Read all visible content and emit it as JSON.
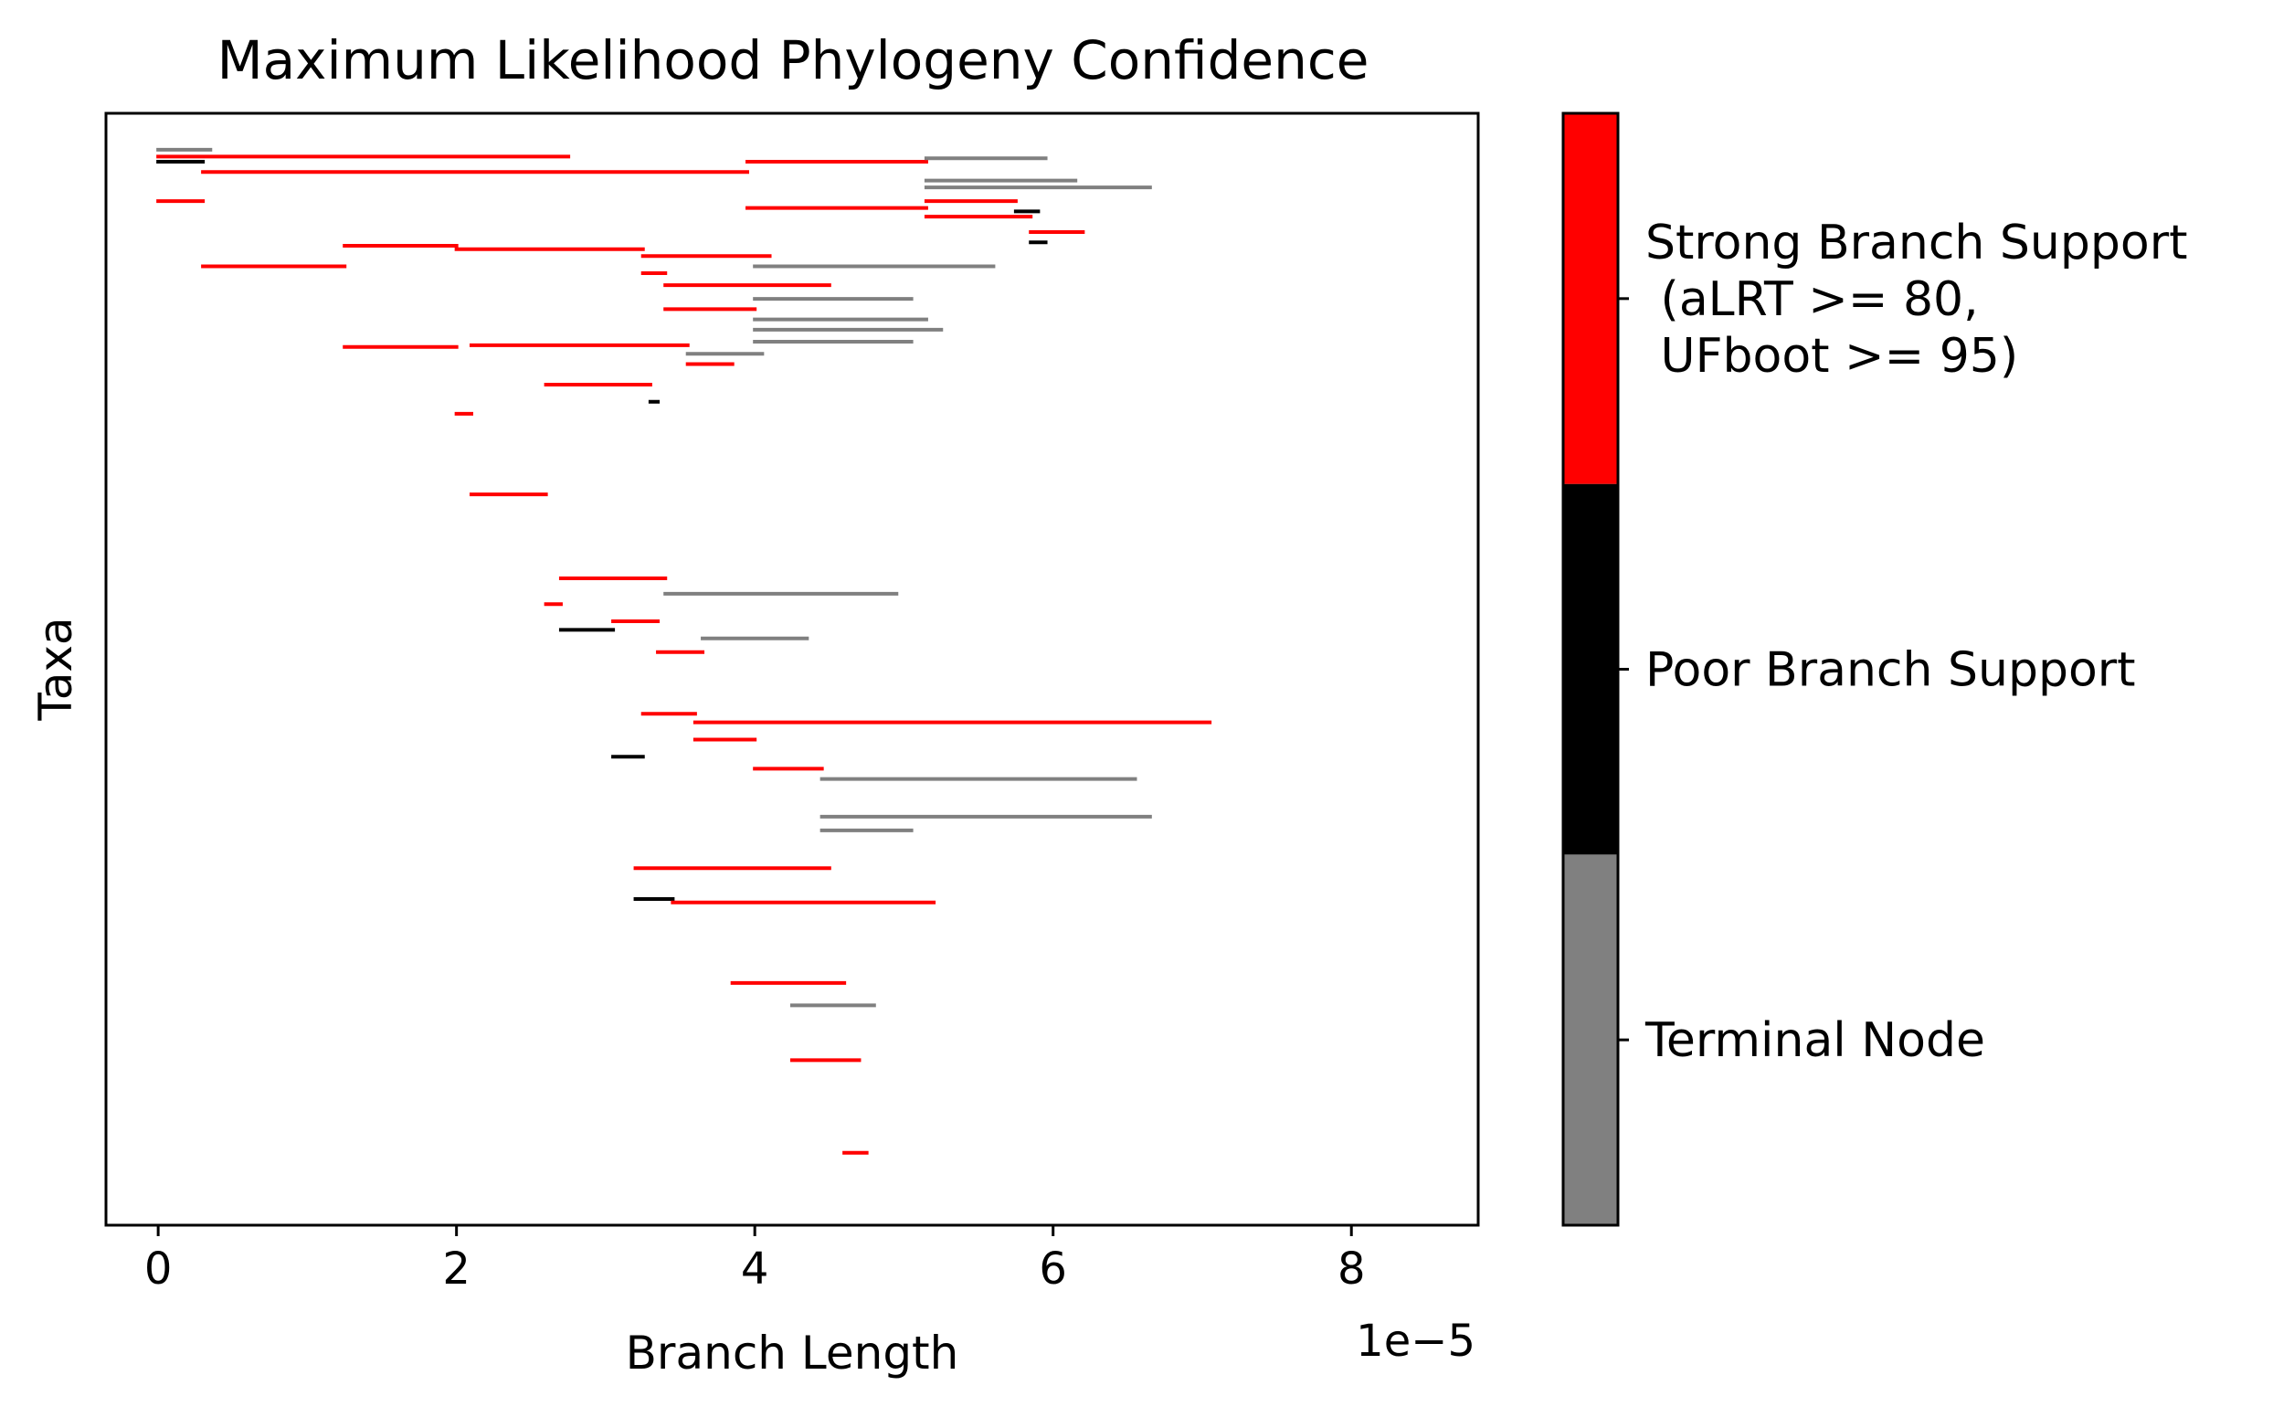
{
  "chart_data": {
    "type": "tree",
    "title": "Maximum Likelihood Phylogeny Confidence",
    "xlabel": "Branch Length",
    "ylabel": "Taxa",
    "x_offset_label": "1e−5",
    "x_scale_exponent": -5,
    "xlim": [
      -0.35,
      8.85
    ],
    "xticks": [
      0,
      2,
      4,
      6,
      8
    ],
    "xtick_labels": [
      "0",
      "2",
      "4",
      "6",
      "8"
    ],
    "y_ticks_visible": false,
    "grid": false,
    "colors": {
      "strong": "#ff0000",
      "poor": "#000000",
      "terminal": "#808080",
      "axes": "#000000",
      "background": "#ffffff"
    },
    "colorbar": {
      "order_bottom_to_top": [
        "terminal",
        "poor",
        "strong"
      ],
      "labels": {
        "terminal": "Terminal Node",
        "poor": "Poor Branch Support",
        "strong": "Strong Branch Support\n (aLRT >= 80,\n UFboot >= 95)"
      },
      "label_lines": {
        "terminal": [
          "Terminal Node"
        ],
        "poor": [
          "Poor Branch Support"
        ],
        "strong": [
          "Strong Branch Support",
          " (aLRT >= 80,",
          " UFboot >= 95)"
        ]
      }
    },
    "branches": [
      {
        "x0": 0,
        "x1": 0.3,
        "y": 31,
        "type": "strong"
      },
      {
        "x0": 0,
        "x1": 0.35,
        "y": 1,
        "type": "terminal"
      },
      {
        "x0": 0,
        "x1": 2.75,
        "y": 5,
        "type": "strong"
      },
      {
        "x0": 0,
        "x1": 0.3,
        "y": 8,
        "type": "poor"
      },
      {
        "x0": 0.3,
        "x1": 1.25,
        "y": 69,
        "type": "strong"
      },
      {
        "x0": 0.3,
        "x1": 3.95,
        "y": 14,
        "type": "strong"
      },
      {
        "x0": 3.95,
        "x1": 5.15,
        "y": 8,
        "type": "strong"
      },
      {
        "x0": 3.95,
        "x1": 5.15,
        "y": 35,
        "type": "strong"
      },
      {
        "x0": 5.15,
        "x1": 5.95,
        "y": 6,
        "type": "terminal"
      },
      {
        "x0": 5.15,
        "x1": 6.65,
        "y": 23,
        "type": "terminal"
      },
      {
        "x0": 5.15,
        "x1": 6.15,
        "y": 19,
        "type": "terminal"
      },
      {
        "x0": 5.15,
        "x1": 5.75,
        "y": 31,
        "type": "strong"
      },
      {
        "x0": 5.15,
        "x1": 5.85,
        "y": 40,
        "type": "strong"
      },
      {
        "x0": 5.75,
        "x1": 5.9,
        "y": 37,
        "type": "poor"
      },
      {
        "x0": 5.85,
        "x1": 6.2,
        "y": 49,
        "type": "strong"
      },
      {
        "x0": 5.85,
        "x1": 5.95,
        "y": 55,
        "type": "poor"
      },
      {
        "x0": 1.25,
        "x1": 2.0,
        "y": 116,
        "type": "strong"
      },
      {
        "x0": 1.25,
        "x1": 2.0,
        "y": 57,
        "type": "strong"
      },
      {
        "x0": 2.0,
        "x1": 3.25,
        "y": 59,
        "type": "strong"
      },
      {
        "x0": 2.0,
        "x1": 2.1,
        "y": 155,
        "type": "strong"
      },
      {
        "x0": 3.25,
        "x1": 4.1,
        "y": 63,
        "type": "strong"
      },
      {
        "x0": 3.25,
        "x1": 3.4,
        "y": 73,
        "type": "strong"
      },
      {
        "x0": 3.4,
        "x1": 4.5,
        "y": 80,
        "type": "strong"
      },
      {
        "x0": 3.4,
        "x1": 4.0,
        "y": 94,
        "type": "strong"
      },
      {
        "x0": 4.0,
        "x1": 5.6,
        "y": 69,
        "type": "terminal"
      },
      {
        "x0": 4.0,
        "x1": 5.05,
        "y": 88,
        "type": "terminal"
      },
      {
        "x0": 4.0,
        "x1": 5.15,
        "y": 100,
        "type": "terminal"
      },
      {
        "x0": 4.0,
        "x1": 5.25,
        "y": 106,
        "type": "terminal"
      },
      {
        "x0": 4.0,
        "x1": 5.05,
        "y": 113,
        "type": "terminal"
      },
      {
        "x0": 2.1,
        "x1": 3.55,
        "y": 115,
        "type": "strong"
      },
      {
        "x0": 2.1,
        "x1": 2.6,
        "y": 202,
        "type": "strong"
      },
      {
        "x0": 3.55,
        "x1": 4.05,
        "y": 120,
        "type": "terminal"
      },
      {
        "x0": 3.55,
        "x1": 3.85,
        "y": 126,
        "type": "strong"
      },
      {
        "x0": 2.6,
        "x1": 3.3,
        "y": 138,
        "type": "strong"
      },
      {
        "x0": 2.6,
        "x1": 2.7,
        "y": 266,
        "type": "strong"
      },
      {
        "x0": 3.3,
        "x1": 3.35,
        "y": 148,
        "type": "poor"
      },
      {
        "x0": 2.7,
        "x1": 3.4,
        "y": 251,
        "type": "strong"
      },
      {
        "x0": 2.7,
        "x1": 3.05,
        "y": 281,
        "type": "poor"
      },
      {
        "x0": 3.4,
        "x1": 4.95,
        "y": 260,
        "type": "terminal"
      },
      {
        "x0": 3.05,
        "x1": 3.35,
        "y": 276,
        "type": "strong"
      },
      {
        "x0": 3.35,
        "x1": 3.65,
        "y": 294,
        "type": "strong"
      },
      {
        "x0": 3.65,
        "x1": 4.35,
        "y": 286,
        "type": "terminal"
      },
      {
        "x0": 3.05,
        "x1": 3.25,
        "y": 355,
        "type": "poor"
      },
      {
        "x0": 3.25,
        "x1": 3.6,
        "y": 330,
        "type": "strong"
      },
      {
        "x0": 3.6,
        "x1": 7.05,
        "y": 335,
        "type": "strong"
      },
      {
        "x0": 3.6,
        "x1": 4.0,
        "y": 345,
        "type": "strong"
      },
      {
        "x0": 4.0,
        "x1": 4.45,
        "y": 362,
        "type": "strong"
      },
      {
        "x0": 4.45,
        "x1": 6.55,
        "y": 368,
        "type": "terminal"
      },
      {
        "x0": 4.45,
        "x1": 6.65,
        "y": 390,
        "type": "terminal"
      },
      {
        "x0": 4.45,
        "x1": 5.05,
        "y": 398,
        "type": "terminal"
      },
      {
        "x0": 3.2,
        "x1": 4.5,
        "y": 420,
        "type": "strong"
      },
      {
        "x0": 3.2,
        "x1": 3.45,
        "y": 438,
        "type": "poor"
      },
      {
        "x0": 3.45,
        "x1": 5.2,
        "y": 440,
        "type": "strong"
      },
      {
        "x0": 3.85,
        "x1": 4.6,
        "y": 487,
        "type": "strong"
      },
      {
        "x0": 4.25,
        "x1": 4.8,
        "y": 500,
        "type": "terminal"
      },
      {
        "x0": 4.25,
        "x1": 4.7,
        "y": 532,
        "type": "strong"
      },
      {
        "x0": 4.6,
        "x1": 4.75,
        "y": 586,
        "type": "strong"
      }
    ]
  }
}
